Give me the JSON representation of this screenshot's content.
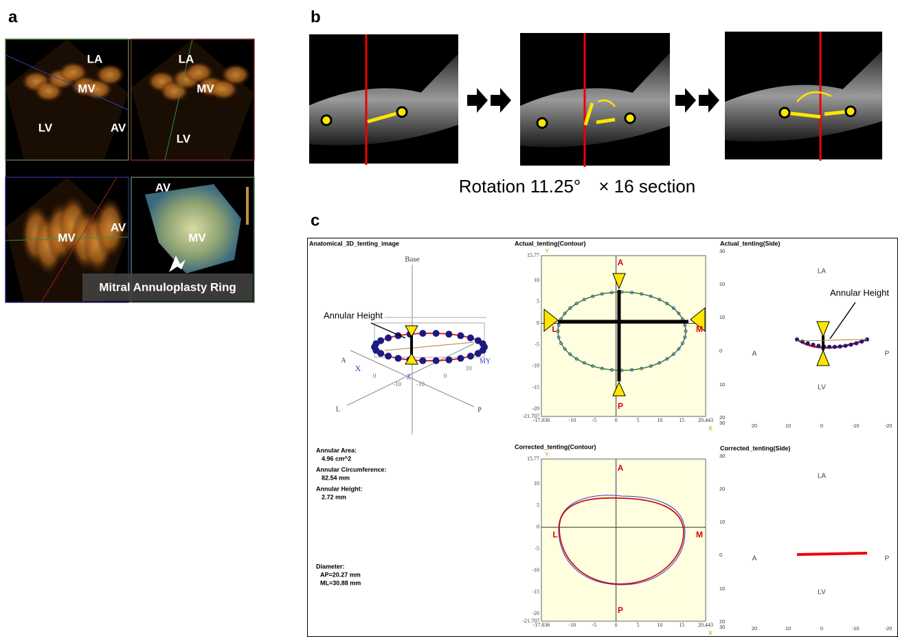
{
  "panel_labels": [
    "a",
    "b",
    "c"
  ],
  "panel_a": {
    "views": [
      {
        "labels": [
          "LA",
          "MV",
          "LV",
          "AV"
        ]
      },
      {
        "labels": [
          "LA",
          "MV",
          "LV"
        ]
      },
      {
        "labels": [
          "MV",
          "AV"
        ]
      },
      {
        "labels": [
          "AV",
          "MV"
        ]
      }
    ],
    "ring_label": "Mitral Annuloplasty Ring"
  },
  "panel_b": {
    "caption": "Rotation 11.25°　× 16 section"
  },
  "panel_c": {
    "anatomical": {
      "title": "Anatomical_3D_tenting_image",
      "axis_labels": [
        "Base",
        "A",
        "L",
        "P",
        "X",
        "MY",
        "Z",
        "0",
        "0",
        "10",
        "-10",
        "-10"
      ],
      "annotation": "Annular Height",
      "measurements": [
        {
          "label": "Annular Area:",
          "value": "4.96 cm^2"
        },
        {
          "label": "Annular Circumference:",
          "value": "82.54 mm"
        },
        {
          "label": "Annular Height:",
          "value": "2.72 mm"
        }
      ],
      "diameter": {
        "label": "Diameter:",
        "values": [
          "AP=20.27 mm",
          "ML=30.88 mm"
        ]
      }
    },
    "contour_plots": [
      {
        "title": "Actual_tenting(Contour)",
        "y_axis": "Y",
        "x_axis": "X",
        "yticks": [
          "15.77",
          "10",
          "5",
          "0",
          "-5",
          "-10",
          "-15",
          "-20",
          "-21.707"
        ],
        "xticks": [
          "-17.036",
          "-10",
          "-5",
          "0",
          "5",
          "10",
          "15",
          "20.443"
        ],
        "markers": [
          "A",
          "P",
          "L",
          "M"
        ]
      },
      {
        "title": "Corrected_tenting(Contour)",
        "y_axis": "Y",
        "x_axis": "X",
        "yticks": [
          "15.77",
          "10",
          "5",
          "0",
          "-5",
          "-10",
          "-15",
          "-20",
          "-21.707"
        ],
        "xticks": [
          "-17.036",
          "-10",
          "-5",
          "0",
          "5",
          "10",
          "15",
          "20.443"
        ],
        "markers": [
          "A",
          "P",
          "L",
          "M"
        ]
      }
    ],
    "side_plots": [
      {
        "title": "Actual_tenting(Side)",
        "yticks": [
          "30",
          "20",
          "10",
          "0",
          "10",
          "20",
          "30"
        ],
        "xticks": [
          "20",
          "10",
          "0",
          "-10",
          "-20"
        ],
        "labels": [
          "LA",
          "LV",
          "A",
          "P"
        ],
        "annotation": "Annular Height"
      },
      {
        "title": "Corrected_tenting(Side)",
        "yticks": [
          "30",
          "20",
          "10",
          "0",
          "10",
          "20",
          "30"
        ],
        "xticks": [
          "20",
          "10",
          "0",
          "-10",
          "-20"
        ],
        "labels": [
          "LA",
          "LV",
          "A",
          "P"
        ]
      }
    ]
  }
}
